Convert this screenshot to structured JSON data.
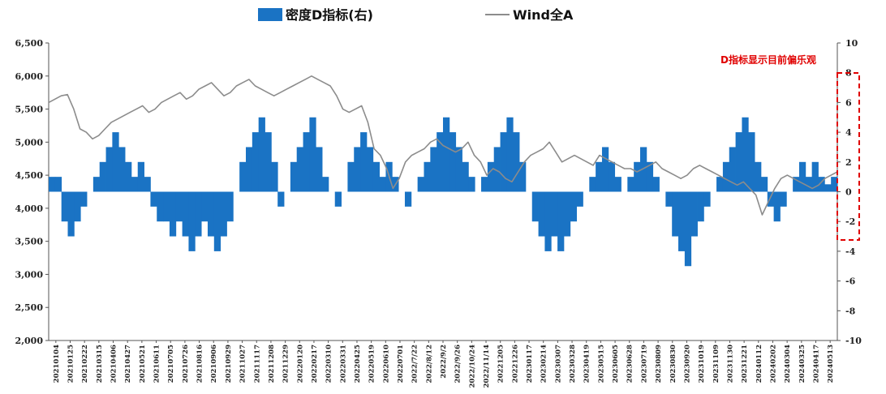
{
  "chart_data": {
    "type": "bar+line",
    "legend": {
      "bar_label": "密度D指标(右)",
      "line_label": "Wind全A"
    },
    "annotation": "D指标显示目前偏乐观",
    "colors": {
      "bar": "#1a73c4",
      "line": "#8c8c8c",
      "annotation": "#e00000",
      "axis": "#555555"
    },
    "y_left": {
      "min": 2000,
      "max": 6500,
      "ticks": [
        "2,000",
        "2,500",
        "3,000",
        "3,500",
        "4,000",
        "4,500",
        "5,000",
        "5,500",
        "6,000",
        "6,500"
      ],
      "tick_values": [
        2000,
        2500,
        3000,
        3500,
        4000,
        4500,
        5000,
        5500,
        6000,
        6500
      ]
    },
    "y_right": {
      "min": -10,
      "max": 10,
      "ticks": [
        "-10",
        "-8",
        "-6",
        "-4",
        "-2",
        "0",
        "2",
        "4",
        "6",
        "8",
        "10"
      ],
      "tick_values": [
        -10,
        -8,
        -6,
        -4,
        -2,
        0,
        2,
        4,
        6,
        8,
        10
      ]
    },
    "x_ticks": [
      "20210104",
      "20210125",
      "20210222",
      "20210315",
      "20210406",
      "20210427",
      "20210521",
      "20210611",
      "20210705",
      "20210726",
      "20210816",
      "20210906",
      "20210929",
      "20211027",
      "20211117",
      "20211208",
      "20211229",
      "20220120",
      "20220217",
      "20220310",
      "20220331",
      "20220425",
      "20220519",
      "20220610",
      "20220701",
      "2022/7/22",
      "2022/8/12",
      "2022/9/2",
      "2022/9/26",
      "2022/10/24",
      "2022/11/14",
      "20221205",
      "20221226",
      "20230117",
      "20230214",
      "20230307",
      "20230328",
      "20230419",
      "20230515",
      "20230605",
      "20230628",
      "20230719",
      "20230809",
      "20230830",
      "20230920",
      "20231019",
      "20231109",
      "20231130",
      "20231221",
      "20240112",
      "20240202",
      "20240304",
      "20240325",
      "20240417",
      "20240513"
    ],
    "wind_a_series": [
      5600,
      5650,
      5700,
      5720,
      5500,
      5200,
      5150,
      5050,
      5100,
      5200,
      5300,
      5350,
      5400,
      5450,
      5500,
      5550,
      5450,
      5500,
      5600,
      5650,
      5700,
      5750,
      5650,
      5700,
      5800,
      5850,
      5900,
      5800,
      5700,
      5750,
      5850,
      5900,
      5950,
      5850,
      5800,
      5750,
      5700,
      5750,
      5800,
      5850,
      5900,
      5950,
      6000,
      5950,
      5900,
      5850,
      5700,
      5500,
      5450,
      5500,
      5550,
      5300,
      4900,
      4800,
      4600,
      4300,
      4450,
      4700,
      4800,
      4850,
      4900,
      5000,
      5050,
      4950,
      4900,
      4850,
      4900,
      5000,
      4800,
      4700,
      4500,
      4600,
      4550,
      4450,
      4400,
      4550,
      4700,
      4800,
      4850,
      4900,
      5000,
      4850,
      4700,
      4750,
      4800,
      4750,
      4700,
      4650,
      4800,
      4750,
      4700,
      4650,
      4600,
      4600,
      4550,
      4600,
      4650,
      4700,
      4600,
      4550,
      4500,
      4450,
      4500,
      4600,
      4650,
      4600,
      4550,
      4500,
      4450,
      4400,
      4350,
      4400,
      4300,
      4200,
      3900,
      4100,
      4300,
      4450,
      4500,
      4450,
      4400,
      4350,
      4300,
      4350,
      4450,
      4500,
      4550
    ],
    "d_indicator_series": [
      1,
      1,
      -2,
      -3,
      -2,
      -1,
      0,
      1,
      2,
      3,
      4,
      3,
      2,
      1,
      2,
      1,
      -1,
      -2,
      -2,
      -3,
      -2,
      -3,
      -4,
      -3,
      -2,
      -3,
      -4,
      -3,
      -2,
      0,
      2,
      3,
      4,
      5,
      4,
      2,
      -1,
      0,
      2,
      3,
      4,
      5,
      3,
      1,
      0,
      -1,
      0,
      2,
      3,
      4,
      3,
      2,
      1,
      2,
      1,
      0,
      -1,
      0,
      1,
      2,
      3,
      4,
      5,
      4,
      3,
      2,
      1,
      0,
      1,
      2,
      3,
      4,
      5,
      4,
      2,
      0,
      -2,
      -3,
      -4,
      -3,
      -4,
      -3,
      -2,
      -1,
      0,
      1,
      2,
      3,
      2,
      1,
      0,
      1,
      2,
      3,
      2,
      1,
      0,
      -1,
      -3,
      -4,
      -5,
      -3,
      -2,
      -1,
      0,
      1,
      2,
      3,
      4,
      5,
      4,
      2,
      1,
      -1,
      -2,
      -1,
      0,
      1,
      2,
      1,
      2,
      1,
      0.5,
      1
    ]
  }
}
